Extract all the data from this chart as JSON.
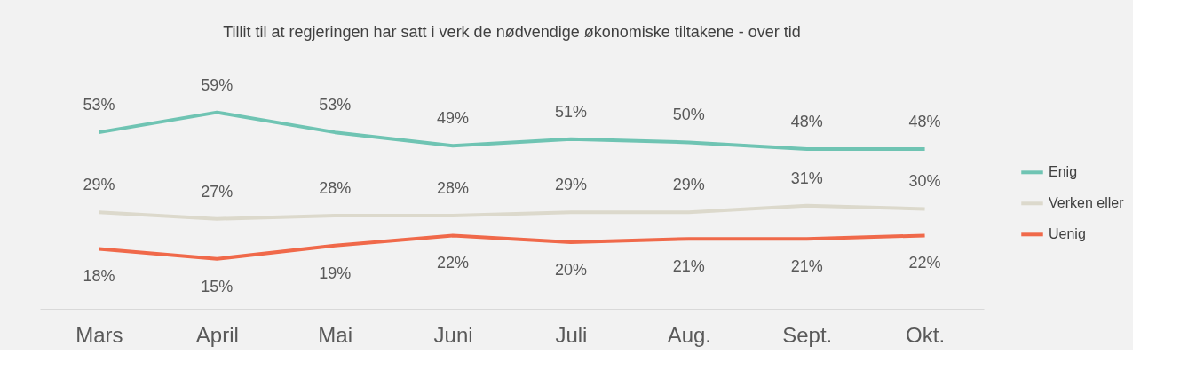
{
  "chart_data": {
    "type": "line",
    "title": "Tillit til at regjeringen har satt i verk de nødvendige økonomiske tiltakene - over tid",
    "categories": [
      "Mars",
      "April",
      "Mai",
      "Juni",
      "Juli",
      "Aug.",
      "Sept.",
      "Okt."
    ],
    "series": [
      {
        "name": "Enig",
        "color": "#6fc4b3",
        "values": [
          53,
          59,
          53,
          49,
          51,
          50,
          48,
          48
        ],
        "value_labels": [
          "53%",
          "59%",
          "53%",
          "49%",
          "51%",
          "50%",
          "48%",
          "48%"
        ]
      },
      {
        "name": "Verken eller",
        "color": "#dcd9cc",
        "values": [
          29,
          27,
          28,
          28,
          29,
          29,
          31,
          30
        ],
        "value_labels": [
          "29%",
          "27%",
          "28%",
          "28%",
          "29%",
          "29%",
          "31%",
          "30%"
        ]
      },
      {
        "name": "Uenig",
        "color": "#f0694a",
        "values": [
          18,
          15,
          19,
          22,
          20,
          21,
          21,
          22
        ],
        "value_labels": [
          "18%",
          "15%",
          "19%",
          "22%",
          "20%",
          "21%",
          "21%",
          "22%"
        ]
      }
    ],
    "legend": "right",
    "grid": false,
    "marker": "none",
    "line_style": "solid"
  }
}
